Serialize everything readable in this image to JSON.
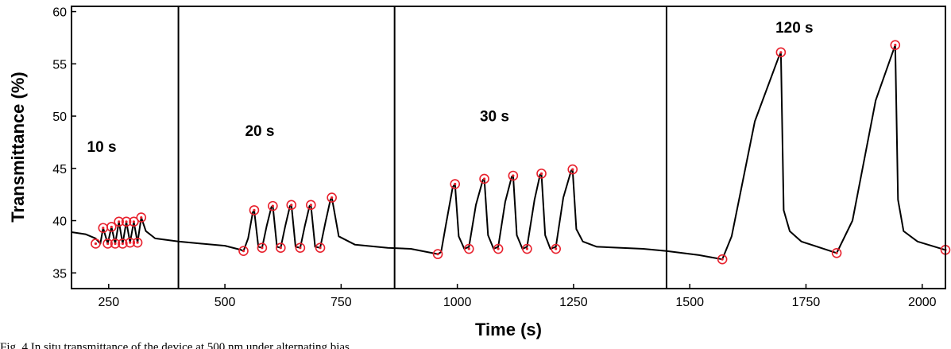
{
  "chart_data": {
    "type": "line",
    "xlabel": "Time (s)",
    "ylabel": "Transmittance  (%)",
    "xlim": [
      170,
      2050
    ],
    "ylim": [
      33.5,
      60.5
    ],
    "x_ticks": [
      250,
      500,
      750,
      1000,
      1250,
      1500,
      1750,
      2000
    ],
    "x_tick_labels": [
      "250",
      "500",
      "750",
      "1000",
      "1250",
      "1500",
      "1750",
      "2000"
    ],
    "y_ticks": [
      35,
      40,
      45,
      50,
      55,
      60
    ],
    "y_tick_labels": [
      "35",
      "40",
      "45",
      "50",
      "55",
      "60"
    ],
    "dividers_x": [
      400,
      865,
      1450
    ],
    "segment_labels": [
      {
        "text": "10 s",
        "x": 235,
        "y": 46.6
      },
      {
        "text": "20 s",
        "x": 575,
        "y": 48.1
      },
      {
        "text": "30 s",
        "x": 1080,
        "y": 49.5
      },
      {
        "text": "120 s",
        "x": 1725,
        "y": 58.0
      }
    ],
    "series": [
      {
        "color": "#000000",
        "x": [
          170,
          200,
          222,
          232,
          238,
          248,
          256,
          264,
          272,
          280,
          288,
          296,
          304,
          312,
          320,
          330,
          350,
          400,
          450,
          500,
          535,
          540,
          550,
          560,
          563,
          572,
          580,
          590,
          600,
          603,
          612,
          620,
          630,
          640,
          643,
          652,
          662,
          672,
          682,
          685,
          694,
          705,
          716,
          727,
          730,
          745,
          780,
          850,
          900,
          958,
          965,
          975,
          990,
          995,
          1003,
          1015,
          1025,
          1040,
          1055,
          1058,
          1066,
          1078,
          1088,
          1103,
          1117,
          1120,
          1128,
          1140,
          1150,
          1166,
          1178,
          1181,
          1189,
          1200,
          1212,
          1228,
          1245,
          1248,
          1256,
          1270,
          1300,
          1400,
          1450,
          1520,
          1570,
          1590,
          1640,
          1690,
          1696,
          1702,
          1715,
          1740,
          1816,
          1850,
          1900,
          1938,
          1942,
          1948,
          1960,
          1990,
          2050
        ],
        "y": [
          38.9,
          38.7,
          38.3,
          37.8,
          39.3,
          37.8,
          39.4,
          37.8,
          39.9,
          37.8,
          39.9,
          37.9,
          39.9,
          37.9,
          40.3,
          39.0,
          38.3,
          38.0,
          37.8,
          37.6,
          37.2,
          37.1,
          38.3,
          40.8,
          41.0,
          37.5,
          37.4,
          39.5,
          41.3,
          41.4,
          37.5,
          37.4,
          39.5,
          41.4,
          41.5,
          37.5,
          37.4,
          39.5,
          41.4,
          41.5,
          37.5,
          37.4,
          39.8,
          42.0,
          42.2,
          38.5,
          37.7,
          37.4,
          37.3,
          36.8,
          37.0,
          39.5,
          43.2,
          43.5,
          38.5,
          37.3,
          37.5,
          41.5,
          43.9,
          44.0,
          38.6,
          37.3,
          37.5,
          41.8,
          44.2,
          44.3,
          38.6,
          37.3,
          37.5,
          42.0,
          44.4,
          44.5,
          38.6,
          37.3,
          37.5,
          42.2,
          44.8,
          44.9,
          39.2,
          38.0,
          37.5,
          37.3,
          37.1,
          36.7,
          36.3,
          38.5,
          49.5,
          55.5,
          56.1,
          41.0,
          39.0,
          38.0,
          36.9,
          40.0,
          51.5,
          56.3,
          56.8,
          42.0,
          39.0,
          38.0,
          37.2
        ]
      }
    ],
    "markers": {
      "color": "#e8212d",
      "x": [
        222,
        238,
        248,
        256,
        264,
        272,
        280,
        288,
        296,
        304,
        312,
        320,
        540,
        563,
        580,
        603,
        620,
        643,
        662,
        685,
        705,
        730,
        958,
        995,
        1025,
        1058,
        1088,
        1120,
        1150,
        1181,
        1212,
        1248,
        1570,
        1696,
        1816,
        1942,
        2050
      ],
      "y": [
        37.8,
        39.3,
        37.8,
        39.4,
        37.8,
        39.9,
        37.8,
        39.9,
        37.9,
        39.9,
        37.9,
        40.3,
        37.1,
        41.0,
        37.4,
        41.4,
        37.4,
        41.5,
        37.4,
        41.5,
        37.4,
        42.2,
        36.8,
        43.5,
        37.3,
        44.0,
        37.3,
        44.3,
        37.3,
        44.5,
        37.3,
        44.9,
        36.3,
        56.1,
        36.9,
        56.8,
        37.2
      ]
    }
  },
  "caption": {
    "text": "Fig. 4 In situ transmittance of the device at 500 nm under alternating bias"
  }
}
